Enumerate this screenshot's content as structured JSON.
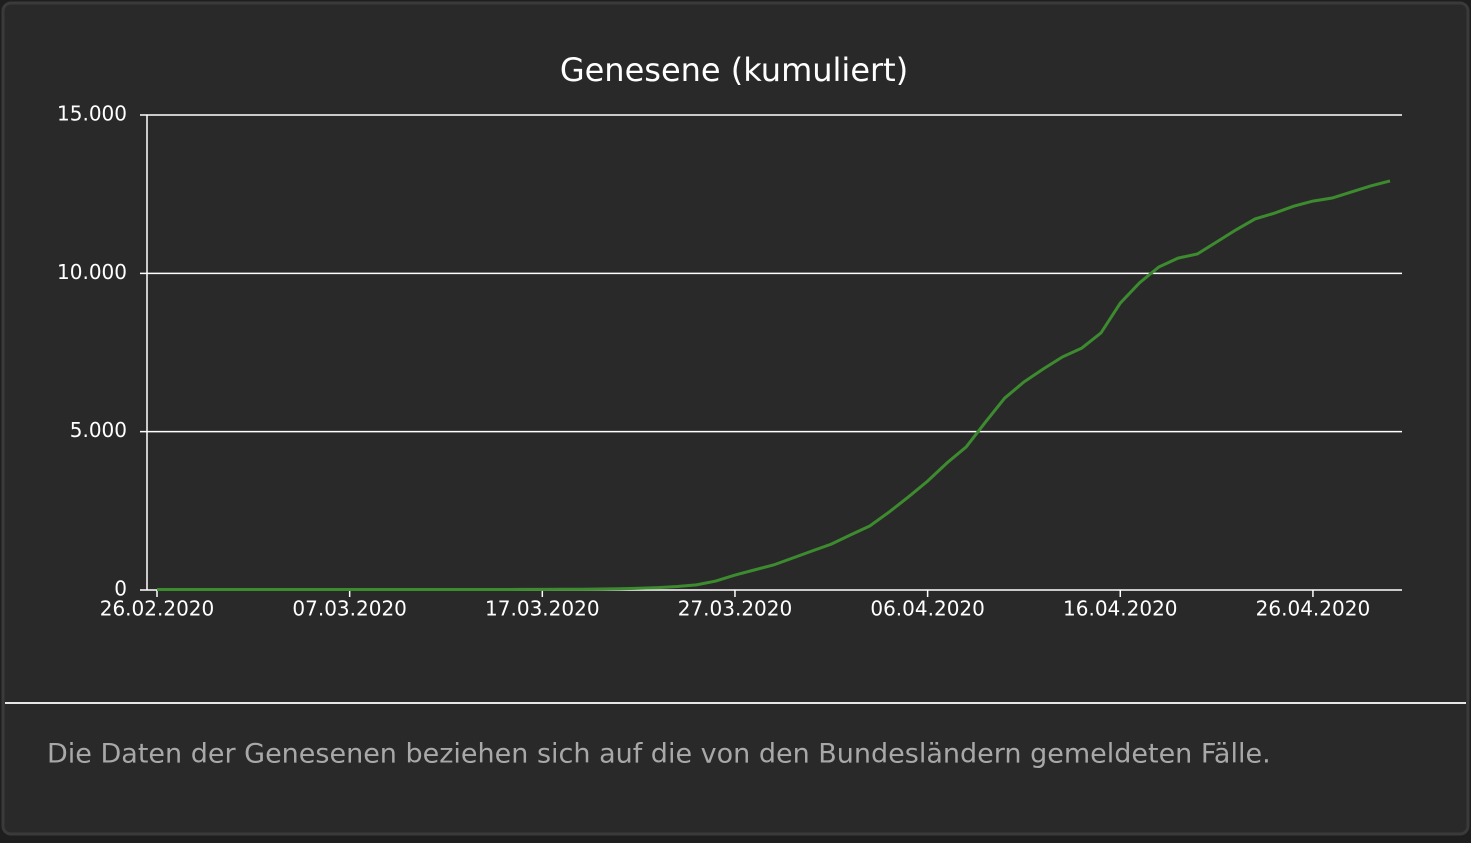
{
  "chart_data": {
    "type": "line",
    "title": "Genesene (kumuliert)",
    "footnote": "Die Daten der Genesenen beziehen sich auf die von den Bundesländern gemeldeten Fälle.",
    "x": [
      "26.02.2020",
      "27.02.2020",
      "28.02.2020",
      "29.02.2020",
      "01.03.2020",
      "02.03.2020",
      "03.03.2020",
      "04.03.2020",
      "05.03.2020",
      "06.03.2020",
      "07.03.2020",
      "08.03.2020",
      "09.03.2020",
      "10.03.2020",
      "11.03.2020",
      "12.03.2020",
      "13.03.2020",
      "14.03.2020",
      "15.03.2020",
      "16.03.2020",
      "17.03.2020",
      "18.03.2020",
      "19.03.2020",
      "20.03.2020",
      "21.03.2020",
      "22.03.2020",
      "23.03.2020",
      "24.03.2020",
      "25.03.2020",
      "26.03.2020",
      "27.03.2020",
      "28.03.2020",
      "29.03.2020",
      "30.03.2020",
      "31.03.2020",
      "01.04.2020",
      "02.04.2020",
      "03.04.2020",
      "04.04.2020",
      "05.04.2020",
      "06.04.2020",
      "07.04.2020",
      "08.04.2020",
      "09.04.2020",
      "10.04.2020",
      "11.04.2020",
      "12.04.2020",
      "13.04.2020",
      "14.04.2020",
      "15.04.2020",
      "16.04.2020",
      "17.04.2020",
      "18.04.2020",
      "19.04.2020",
      "20.04.2020",
      "21.04.2020",
      "22.04.2020",
      "23.04.2020",
      "24.04.2020",
      "25.04.2020",
      "26.04.2020",
      "27.04.2020",
      "28.04.2020",
      "29.04.2020",
      "30.04.2020"
    ],
    "series": [
      {
        "name": "Genesene",
        "color": "#3d8b2f",
        "values": [
          16,
          16,
          16,
          16,
          16,
          16,
          16,
          16,
          16,
          16,
          16,
          16,
          16,
          16,
          16,
          16,
          16,
          16,
          16,
          18,
          20,
          22,
          26,
          32,
          40,
          55,
          75,
          110,
          160,
          280,
          470,
          630,
          790,
          1010,
          1230,
          1450,
          1740,
          2020,
          2460,
          2940,
          3440,
          4010,
          4520,
          5300,
          6060,
          6570,
          6980,
          7360,
          7640,
          8120,
          9060,
          9700,
          10200,
          10480,
          10610,
          10990,
          11370,
          11720,
          11900,
          12120,
          12280,
          12380,
          12570,
          12760,
          12920
        ]
      }
    ],
    "xlim": [
      "26.02.2020",
      "30.04.2020"
    ],
    "xticks": [
      "26.02.2020",
      "07.03.2020",
      "17.03.2020",
      "27.03.2020",
      "06.04.2020",
      "16.04.2020",
      "26.04.2020"
    ],
    "ylim": [
      0,
      15000
    ],
    "yticks": [
      0,
      {
        "value": 5000,
        "label": "5.000"
      },
      {
        "value": 10000,
        "label": "10.000"
      },
      {
        "value": 15000,
        "label": "15.000"
      }
    ],
    "grid": true
  }
}
